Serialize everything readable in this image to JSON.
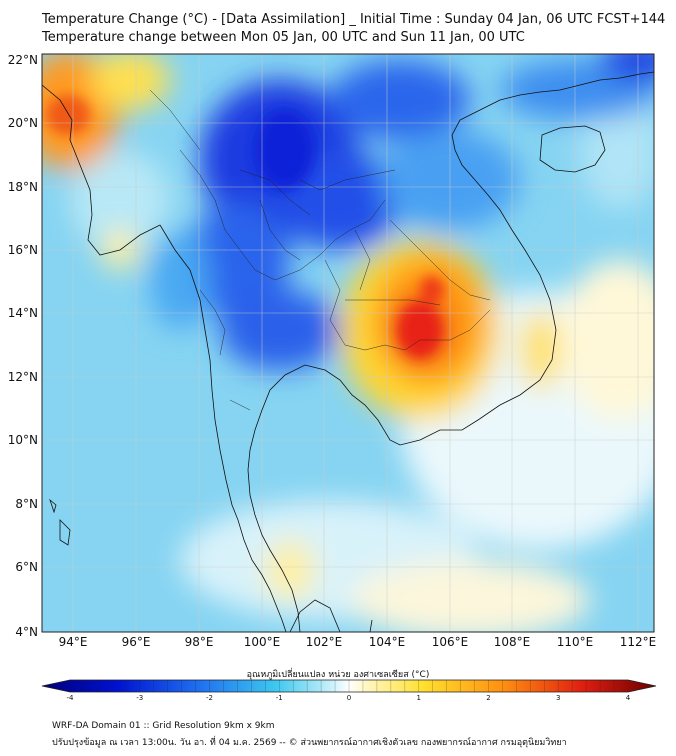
{
  "header": {
    "title": "Temperature Change (°C) - [Data Assimilation] _ Initial Time : Sunday 04 Jan, 06 UTC FCST+144",
    "subtitle": "Temperature change between Mon 05 Jan, 00 UTC and Sun 11 Jan, 00 UTC"
  },
  "map": {
    "lat_labels": [
      "22°N",
      "20°N",
      "18°N",
      "16°N",
      "14°N",
      "12°N",
      "10°N",
      "8°N",
      "6°N",
      "4°N"
    ],
    "lon_labels": [
      "94°E",
      "96°E",
      "98°E",
      "100°E",
      "102°E",
      "104°E",
      "106°E",
      "108°E",
      "110°E",
      "112°E"
    ],
    "lat_range": [
      4,
      22
    ],
    "lon_range": [
      93,
      112.5
    ],
    "colors": {
      "cold": "#0a1adc",
      "cool": "#3ec8f0",
      "neutral": "#ffffff",
      "warm": "#ffe030",
      "hot": "#e8261a"
    }
  },
  "colorbar": {
    "title": "อุณหภูมิเปลี่ยนแปลง หน่วย องศาเซลเซียส (°C)",
    "ticks": [
      "-4",
      "-3",
      "-2",
      "-1",
      "0",
      "1",
      "2",
      "3",
      "4"
    ],
    "range": [
      -4,
      4
    ]
  },
  "footer": {
    "line1": "WRF-DA Domain 01 :: Grid Resolution 9km x 9km",
    "line2": "ปรับปรุงข้อมูล ณ เวลา 13:00น. วัน อา. ที่ 04 ม.ค. 2569 -- © ส่วนพยากรณ์อากาศเชิงตัวเลข กองพยากรณ์อากาศ กรมอุตุนิยมวิทยา"
  }
}
